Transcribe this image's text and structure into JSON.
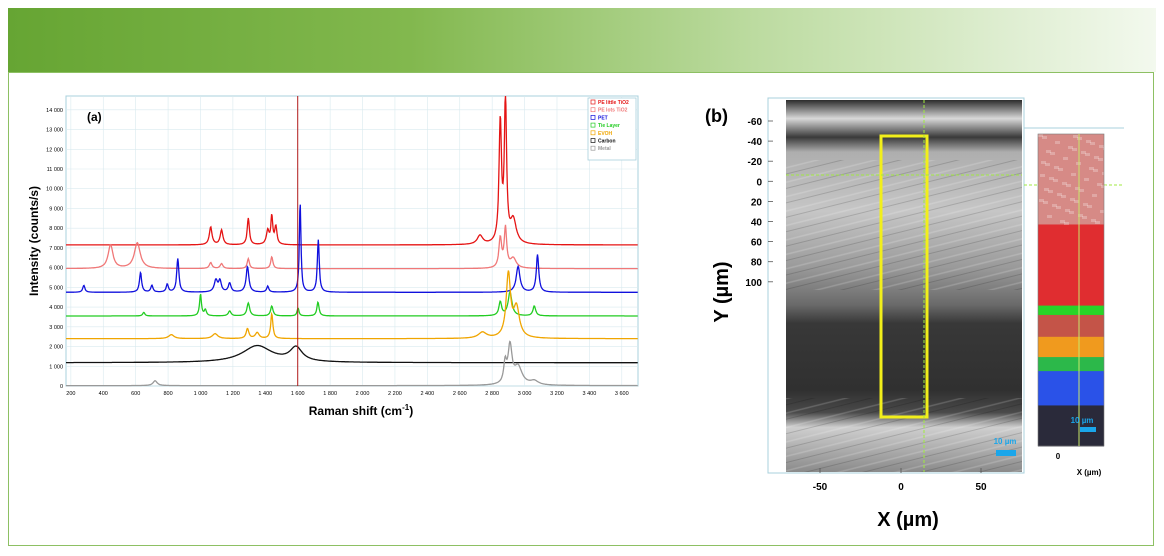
{
  "panel_a": {
    "chart_data": {
      "type": "line",
      "label": "(a)",
      "xlabel": "Raman shift (cm",
      "xlabel_sup": "-1",
      "xlabel_close": ")",
      "ylabel": "Intensity (counts/s)",
      "xlim": [
        170,
        3700
      ],
      "ylim": [
        0,
        14700
      ],
      "x_ticks": [
        "200",
        "400",
        "600",
        "800",
        "1 000",
        "1 200",
        "1 400",
        "1 600",
        "1 800",
        "2 000",
        "2 200",
        "2 400",
        "2 600",
        "2 800",
        "3 000",
        "3 200",
        "3 400",
        "3 600"
      ],
      "y_ticks": [
        "0",
        "1 000",
        "2 000",
        "3 000",
        "4 000",
        "5 000",
        "6 000",
        "7 000",
        "8 000",
        "9 000",
        "10 000",
        "11 000",
        "12 000",
        "13 000",
        "14 000"
      ],
      "cursor_x": 1600,
      "legend_position": "top-right",
      "series": [
        {
          "name": "PE little TiO2",
          "color": "#e51414",
          "baseline": 7150,
          "peaks": [
            [
              1063,
              900,
              10
            ],
            [
              1130,
              750,
              10
            ],
            [
              1295,
              1350,
              8
            ],
            [
              1415,
              700,
              10
            ],
            [
              1440,
              1400,
              7
            ],
            [
              1465,
              900,
              8
            ],
            [
              2725,
              450,
              20
            ],
            [
              2850,
              6100,
              9
            ],
            [
              2882,
              7400,
              8
            ],
            [
              2930,
              1200,
              22
            ]
          ]
        },
        {
          "name": "PE lots TiO2",
          "color": "#f07878",
          "baseline": 5950,
          "peaks": [
            [
              445,
              1200,
              18
            ],
            [
              610,
              1300,
              22
            ],
            [
              1063,
              300,
              10
            ],
            [
              1130,
              250,
              10
            ],
            [
              1295,
              500,
              8
            ],
            [
              1440,
              600,
              8
            ],
            [
              2850,
              1500,
              10
            ],
            [
              2882,
              2000,
              9
            ],
            [
              2930,
              500,
              22
            ]
          ]
        },
        {
          "name": "PET",
          "color": "#1010dd",
          "baseline": 4750,
          "peaks": [
            [
              280,
              350,
              8
            ],
            [
              630,
              1000,
              8
            ],
            [
              700,
              350,
              8
            ],
            [
              795,
              400,
              8
            ],
            [
              860,
              1700,
              8
            ],
            [
              1095,
              600,
              12
            ],
            [
              1120,
              550,
              10
            ],
            [
              1180,
              450,
              10
            ],
            [
              1290,
              1300,
              10
            ],
            [
              1415,
              300,
              8
            ],
            [
              1615,
              4550,
              6
            ],
            [
              1727,
              2650,
              7
            ],
            [
              2960,
              1300,
              14
            ],
            [
              3080,
              1900,
              9
            ]
          ]
        },
        {
          "name": "Tie Layer",
          "color": "#22cc22",
          "baseline": 3550,
          "peaks": [
            [
              650,
              180,
              8
            ],
            [
              1000,
              1100,
              7
            ],
            [
              1030,
              300,
              8
            ],
            [
              1180,
              250,
              10
            ],
            [
              1295,
              650,
              10
            ],
            [
              1440,
              500,
              9
            ],
            [
              1602,
              400,
              7
            ],
            [
              1725,
              700,
              8
            ],
            [
              2850,
              700,
              10
            ],
            [
              2910,
              1200,
              14
            ],
            [
              3060,
              500,
              10
            ]
          ]
        },
        {
          "name": "EVOH",
          "color": "#f0a500",
          "baseline": 2400,
          "peaks": [
            [
              820,
              200,
              20
            ],
            [
              1090,
              250,
              20
            ],
            [
              1290,
              500,
              10
            ],
            [
              1350,
              300,
              14
            ],
            [
              1440,
              1250,
              8
            ],
            [
              2740,
              300,
              30
            ],
            [
              2900,
              3200,
              16
            ],
            [
              2950,
              1500,
              22
            ]
          ]
        },
        {
          "name": "Carbon",
          "color": "#111111",
          "baseline": 1180,
          "peaks": [
            [
              1350,
              850,
              110
            ],
            [
              1590,
              700,
              45
            ]
          ]
        },
        {
          "name": "Metal",
          "color": "#999999",
          "baseline": 20,
          "peaks": [
            [
              720,
              250,
              15
            ],
            [
              2880,
              1000,
              10
            ],
            [
              2910,
              1900,
              15
            ],
            [
              2960,
              900,
              30
            ],
            [
              3060,
              200,
              30
            ]
          ]
        }
      ]
    }
  },
  "panel_b": {
    "label": "(b)",
    "xlabel": "X (µm)",
    "ylabel": "Y (µm)",
    "x_ticks": [
      "-50",
      "0",
      "50"
    ],
    "y_ticks": [
      "-60",
      "-40",
      "-20",
      "0",
      "20",
      "40",
      "60",
      "80",
      "100"
    ],
    "scalebar_image": "10 µm",
    "scalebar_map": "10 µm",
    "map_x_tick": "0",
    "map_xlabel": "X (µm)",
    "colors": {
      "selection": "#f2ef1a",
      "scalebar": "#1aa6ea",
      "cursor": "#a0ea40"
    },
    "map_bands": [
      {
        "name": "PE lots TiO2",
        "color": "#d68a86"
      },
      {
        "name": "PE little TiO2",
        "color": "#e02d30"
      },
      {
        "name": "Tie Layer",
        "color": "#28d428"
      },
      {
        "name": "PET",
        "color": "#c45448"
      },
      {
        "name": "EVOH",
        "color": "#f09a1e"
      },
      {
        "name": "Tie Layer",
        "color": "#2cb84a"
      },
      {
        "name": "PET",
        "color": "#2a52e8"
      },
      {
        "name": "Carbon",
        "color": "#2a2a3a"
      }
    ]
  }
}
